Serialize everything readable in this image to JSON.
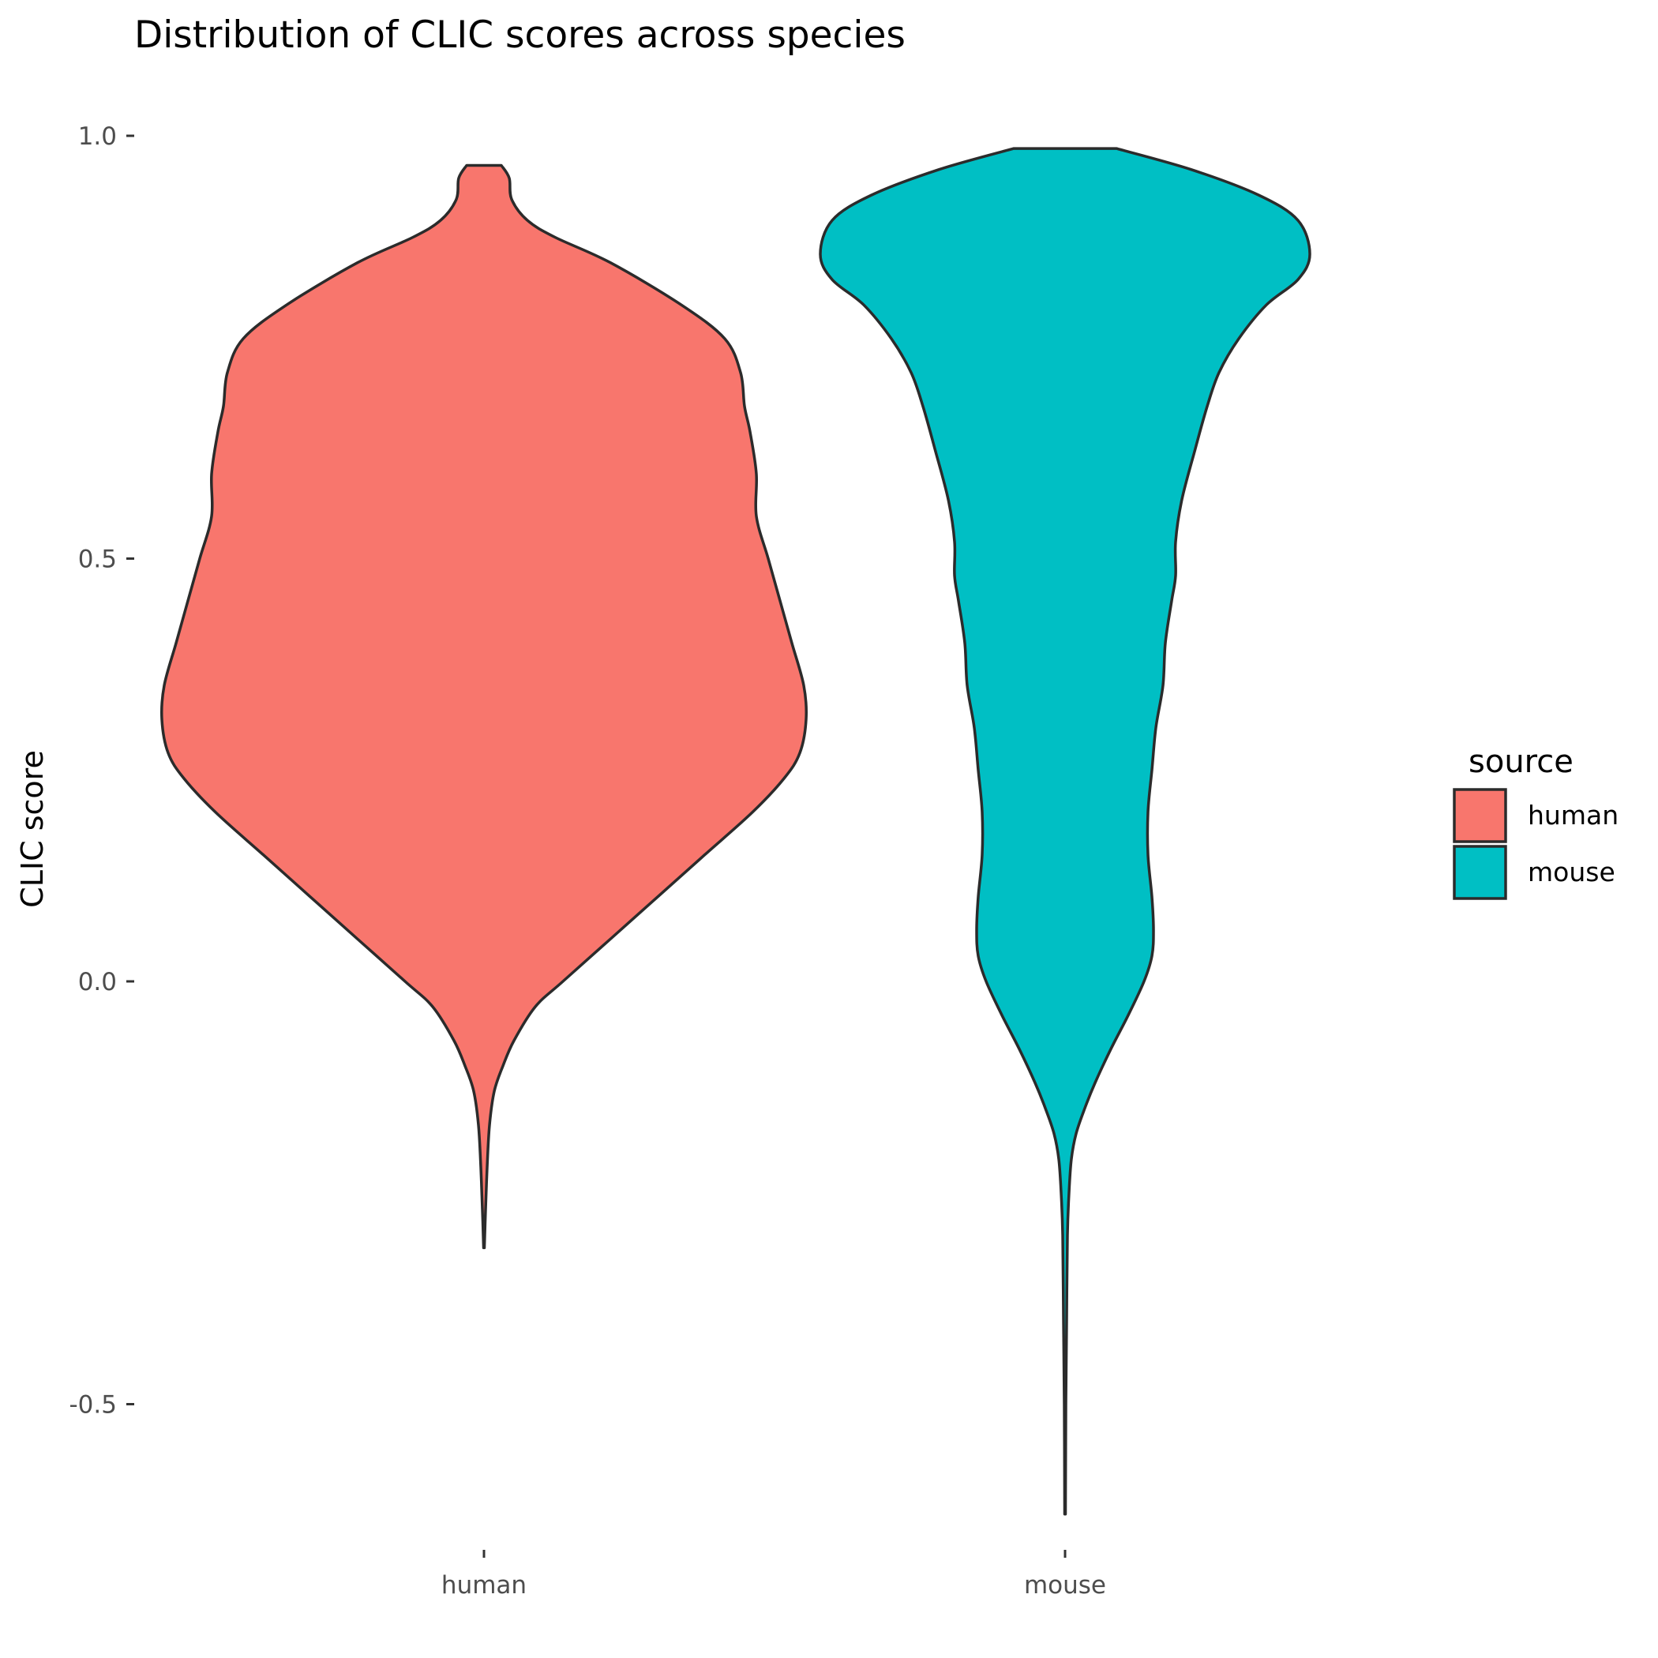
{
  "chart_data": {
    "type": "violin",
    "title": "Distribution of CLIC scores across species",
    "xlabel": "",
    "ylabel": "CLIC score",
    "ylim": [
      -0.7,
      1.03
    ],
    "yticks": [
      1.0,
      0.5,
      0.0,
      -0.5
    ],
    "ytick_labels": [
      "1.0",
      "0.5",
      "0.0",
      "-0.5"
    ],
    "categories": [
      "human",
      "mouse"
    ],
    "grid": false,
    "legend": {
      "title": "source",
      "position": "right",
      "entries": [
        {
          "label": "human",
          "color": "#F8766D"
        },
        {
          "label": "mouse",
          "color": "#00BFC4"
        }
      ]
    },
    "series": [
      {
        "name": "human",
        "color": "#F8766D",
        "min": -0.315,
        "max": 0.965,
        "profile": [
          [
            0.965,
            0.022
          ],
          [
            0.95,
            0.032
          ],
          [
            0.925,
            0.035
          ],
          [
            0.9,
            0.055
          ],
          [
            0.88,
            0.09
          ],
          [
            0.85,
            0.16
          ],
          [
            0.8,
            0.25
          ],
          [
            0.76,
            0.305
          ],
          [
            0.72,
            0.325
          ],
          [
            0.68,
            0.33
          ],
          [
            0.65,
            0.337
          ],
          [
            0.6,
            0.345
          ],
          [
            0.55,
            0.345
          ],
          [
            0.5,
            0.36
          ],
          [
            0.45,
            0.375
          ],
          [
            0.4,
            0.39
          ],
          [
            0.35,
            0.405
          ],
          [
            0.31,
            0.408
          ],
          [
            0.27,
            0.4
          ],
          [
            0.24,
            0.38
          ],
          [
            0.2,
            0.34
          ],
          [
            0.15,
            0.28
          ],
          [
            0.1,
            0.22
          ],
          [
            0.05,
            0.16
          ],
          [
            0.0,
            0.1
          ],
          [
            -0.03,
            0.065
          ],
          [
            -0.07,
            0.038
          ],
          [
            -0.1,
            0.024
          ],
          [
            -0.13,
            0.013
          ],
          [
            -0.17,
            0.007
          ],
          [
            -0.22,
            0.004
          ],
          [
            -0.27,
            0.002
          ],
          [
            -0.315,
            0.0005
          ]
        ]
      },
      {
        "name": "mouse",
        "color": "#00BFC4",
        "min": -0.63,
        "max": 0.985,
        "profile": [
          [
            0.985,
            0.065
          ],
          [
            0.96,
            0.16
          ],
          [
            0.93,
            0.245
          ],
          [
            0.9,
            0.295
          ],
          [
            0.86,
            0.31
          ],
          [
            0.83,
            0.295
          ],
          [
            0.8,
            0.255
          ],
          [
            0.76,
            0.22
          ],
          [
            0.72,
            0.195
          ],
          [
            0.68,
            0.18
          ],
          [
            0.63,
            0.165
          ],
          [
            0.57,
            0.148
          ],
          [
            0.52,
            0.14
          ],
          [
            0.48,
            0.14
          ],
          [
            0.45,
            0.135
          ],
          [
            0.4,
            0.127
          ],
          [
            0.35,
            0.124
          ],
          [
            0.3,
            0.115
          ],
          [
            0.25,
            0.11
          ],
          [
            0.2,
            0.105
          ],
          [
            0.15,
            0.105
          ],
          [
            0.1,
            0.11
          ],
          [
            0.06,
            0.112
          ],
          [
            0.03,
            0.11
          ],
          [
            0.0,
            0.1
          ],
          [
            -0.04,
            0.08
          ],
          [
            -0.08,
            0.058
          ],
          [
            -0.12,
            0.038
          ],
          [
            -0.15,
            0.025
          ],
          [
            -0.18,
            0.014
          ],
          [
            -0.21,
            0.008
          ],
          [
            -0.25,
            0.005
          ],
          [
            -0.3,
            0.003
          ],
          [
            -0.4,
            0.002
          ],
          [
            -0.5,
            0.001
          ],
          [
            -0.63,
            0.0005
          ]
        ]
      }
    ]
  }
}
